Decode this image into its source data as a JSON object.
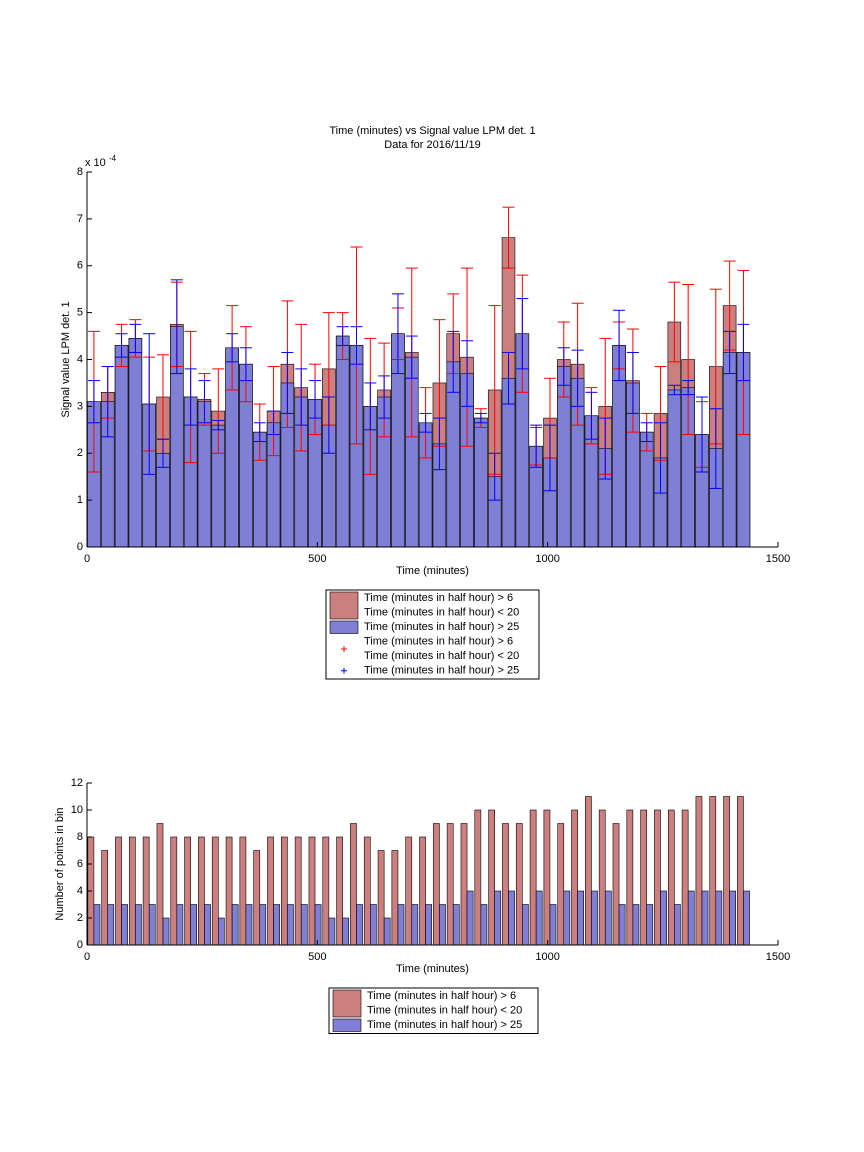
{
  "chart_data": [
    {
      "type": "bar",
      "title": "Time (minutes) vs Signal value LPM det. 1",
      "subtitle": "Data for 2016/11/19",
      "xlabel": "Time (minutes)",
      "ylabel": "Signal value LPM det. 1",
      "y_scale_label": "x 10",
      "y_scale_exponent": "-4",
      "xlim": [
        0,
        1500
      ],
      "xticks": [
        0,
        500,
        1000,
        1500
      ],
      "ylim": [
        0,
        8
      ],
      "yticks": [
        0,
        1,
        2,
        3,
        4,
        5,
        6,
        7,
        8
      ],
      "x": [
        15,
        45,
        75,
        105,
        135,
        165,
        195,
        225,
        255,
        285,
        315,
        345,
        375,
        405,
        435,
        465,
        495,
        525,
        555,
        585,
        615,
        645,
        675,
        705,
        735,
        765,
        795,
        825,
        855,
        885,
        915,
        945,
        975,
        1005,
        1035,
        1065,
        1095,
        1125,
        1155,
        1185,
        1215,
        1245,
        1275,
        1305,
        1335,
        1365,
        1395,
        1425
      ],
      "series": [
        {
          "name": [
            "Time (minutes in half hour) > 6",
            "Time (minutes in half hour) < 20"
          ],
          "color": "#cc7f7f",
          "error_color": "#ff0000",
          "values": [
            3.1,
            3.3,
            4.3,
            4.45,
            3.05,
            3.2,
            4.75,
            3.2,
            3.15,
            2.9,
            4.25,
            3.9,
            2.45,
            2.9,
            3.9,
            3.4,
            3.15,
            3.8,
            4.5,
            4.3,
            3.0,
            3.35,
            4.55,
            4.15,
            2.65,
            3.5,
            4.55,
            4.05,
            2.75,
            3.35,
            6.6,
            4.55,
            2.15,
            2.75,
            4.0,
            3.9,
            2.8,
            3.0,
            4.3,
            3.55,
            2.45,
            2.85,
            4.8,
            4.0,
            2.4,
            3.85,
            5.15,
            4.15
          ],
          "errors": [
            1.5,
            0.55,
            0.45,
            0.4,
            1.0,
            0.9,
            0.9,
            1.4,
            0.55,
            0.9,
            0.9,
            0.8,
            0.6,
            0.95,
            1.35,
            1.35,
            0.75,
            1.2,
            0.5,
            2.1,
            1.45,
            1.0,
            0.55,
            1.8,
            0.75,
            1.35,
            0.85,
            1.9,
            0.2,
            1.8,
            0.65,
            1.25,
            0.4,
            0.85,
            0.8,
            1.3,
            0.6,
            1.45,
            0.5,
            1.1,
            0.4,
            1.0,
            0.85,
            1.6,
            0.7,
            1.65,
            0.95,
            1.75
          ]
        },
        {
          "name": [
            "Time (minutes in half hour) > 25"
          ],
          "color": "#7f7fd6",
          "error_color": "#0000ff",
          "values": [
            3.1,
            3.1,
            4.3,
            4.45,
            3.05,
            2.0,
            4.7,
            3.2,
            3.1,
            2.6,
            4.25,
            3.9,
            2.45,
            2.65,
            3.5,
            3.2,
            3.15,
            2.6,
            4.5,
            4.3,
            3.0,
            3.2,
            4.55,
            4.05,
            2.65,
            2.2,
            3.95,
            3.7,
            2.75,
            1.5,
            3.6,
            4.55,
            2.15,
            1.9,
            3.85,
            3.6,
            2.8,
            2.1,
            4.3,
            3.5,
            2.45,
            1.9,
            3.35,
            3.4,
            2.4,
            2.1,
            4.15,
            4.15
          ],
          "errors": [
            0.45,
            0.75,
            0.25,
            0.3,
            1.5,
            0.3,
            1.0,
            0.6,
            0.45,
            0.1,
            0.3,
            0.35,
            0.2,
            0.25,
            0.65,
            0.6,
            0.4,
            0.6,
            0.2,
            0.4,
            0.5,
            0.45,
            0.85,
            0.45,
            0.2,
            0.55,
            0.65,
            0.7,
            0.1,
            0.5,
            0.55,
            0.75,
            0.45,
            0.7,
            0.4,
            0.6,
            0.5,
            0.65,
            0.75,
            0.65,
            0.2,
            0.75,
            0.1,
            0.15,
            0.8,
            0.85,
            0.45,
            0.6
          ]
        }
      ]
    },
    {
      "type": "grouped_bar",
      "xlabel": "Time (minutes)",
      "ylabel": "Number of points in bin",
      "xlim": [
        0,
        1500
      ],
      "xticks": [
        0,
        500,
        1000,
        1500
      ],
      "ylim": [
        0,
        12
      ],
      "yticks": [
        0,
        2,
        4,
        6,
        8,
        10,
        12
      ],
      "x": [
        15,
        45,
        75,
        105,
        135,
        165,
        195,
        225,
        255,
        285,
        315,
        345,
        375,
        405,
        435,
        465,
        495,
        525,
        555,
        585,
        615,
        645,
        675,
        705,
        735,
        765,
        795,
        825,
        855,
        885,
        915,
        945,
        975,
        1005,
        1035,
        1065,
        1095,
        1125,
        1155,
        1185,
        1215,
        1245,
        1275,
        1305,
        1335,
        1365,
        1395,
        1425
      ],
      "series": [
        {
          "name": [
            "Time (minutes in half hour) > 6",
            "Time (minutes in half hour) < 20"
          ],
          "color": "#cc7f7f",
          "values": [
            8,
            7,
            8,
            8,
            8,
            9,
            8,
            8,
            8,
            8,
            8,
            8,
            7,
            8,
            8,
            8,
            8,
            8,
            8,
            9,
            8,
            7,
            7,
            8,
            8,
            9,
            9,
            9,
            10,
            10,
            9,
            9,
            10,
            10,
            9,
            10,
            11,
            10,
            9,
            10,
            10,
            10,
            10,
            10,
            11,
            11,
            11,
            11
          ]
        },
        {
          "name": [
            "Time (minutes in half hour) > 25"
          ],
          "color": "#7f7fd6",
          "values": [
            3,
            3,
            3,
            3,
            3,
            2,
            3,
            3,
            3,
            2,
            3,
            3,
            3,
            3,
            3,
            3,
            3,
            2,
            2,
            3,
            3,
            2,
            3,
            3,
            3,
            3,
            3,
            4,
            3,
            4,
            4,
            3,
            4,
            3,
            4,
            4,
            4,
            4,
            3,
            3,
            3,
            4,
            3,
            4,
            4,
            4,
            4,
            4
          ]
        }
      ]
    }
  ]
}
